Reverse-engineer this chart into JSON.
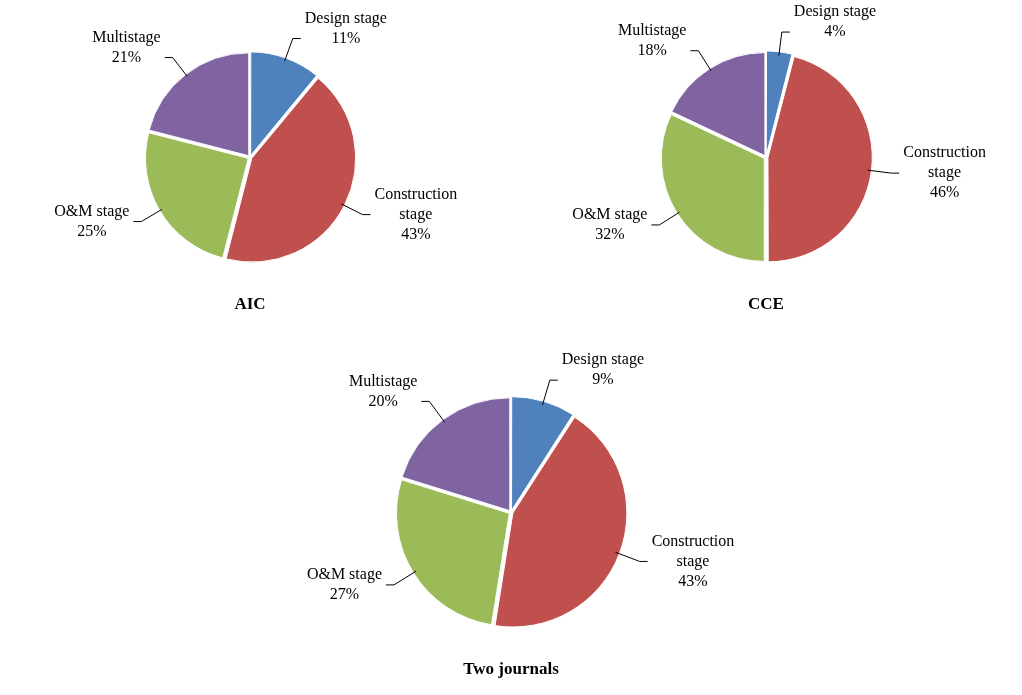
{
  "chart_data": [
    {
      "type": "pie",
      "title": "AIC",
      "categories": [
        "Design stage",
        "Construction stage",
        "O&M stage",
        "Multistage"
      ],
      "values": [
        11,
        43,
        25,
        21
      ],
      "value_labels": [
        "11%",
        "43%",
        "25%",
        "21%"
      ],
      "colors": [
        "#4f81bd",
        "#c0504d",
        "#9bbb59",
        "#8064a2"
      ]
    },
    {
      "type": "pie",
      "title": "CCE",
      "categories": [
        "Design stage",
        "Construction stage",
        "O&M stage",
        "Multistage"
      ],
      "values": [
        4,
        46,
        32,
        18
      ],
      "value_labels": [
        "4%",
        "46%",
        "32%",
        "18%"
      ],
      "colors": [
        "#4f81bd",
        "#c0504d",
        "#9bbb59",
        "#8064a2"
      ]
    },
    {
      "type": "pie",
      "title": "Two journals",
      "categories": [
        "Design stage",
        "Construction stage",
        "O&M stage",
        "Multistage"
      ],
      "values": [
        9,
        43,
        27,
        20
      ],
      "value_labels": [
        "9%",
        "43%",
        "27%",
        "20%"
      ],
      "colors": [
        "#4f81bd",
        "#c0504d",
        "#9bbb59",
        "#8064a2"
      ]
    }
  ]
}
